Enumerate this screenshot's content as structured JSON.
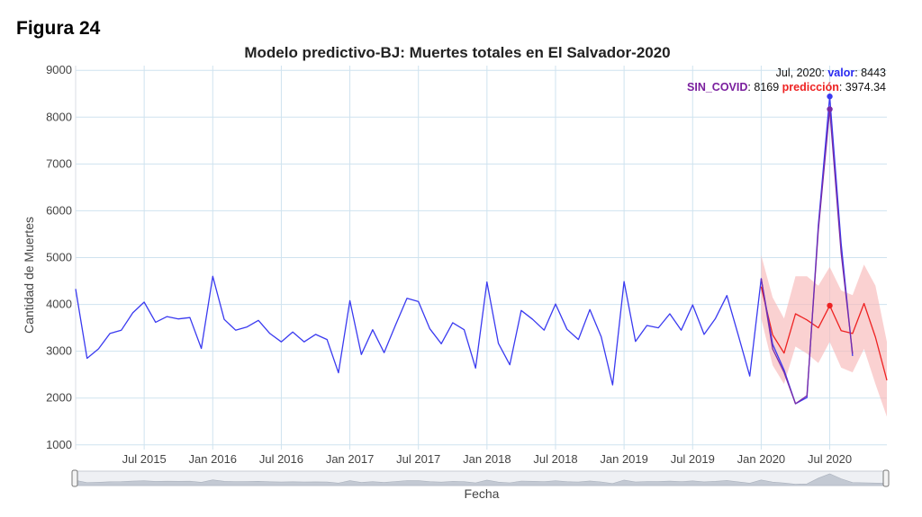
{
  "figure_label": "Figura 24",
  "chart_data": {
    "type": "line",
    "title": "Modelo predictivo-BJ: Muertes totales en El Salvador-2020",
    "xlabel": "Fecha",
    "ylabel": "Cantidad de Muertes",
    "ylim": [
      900,
      9100
    ],
    "yticks": [
      1000,
      2000,
      3000,
      4000,
      5000,
      6000,
      7000,
      8000,
      9000
    ],
    "xlim": [
      "2015-01",
      "2020-12"
    ],
    "xticks": [
      {
        "date": "2015-07",
        "label": "Jul 2015"
      },
      {
        "date": "2016-01",
        "label": "Jan 2016"
      },
      {
        "date": "2016-07",
        "label": "Jul 2016"
      },
      {
        "date": "2017-01",
        "label": "Jan 2017"
      },
      {
        "date": "2017-07",
        "label": "Jul 2017"
      },
      {
        "date": "2018-01",
        "label": "Jan 2018"
      },
      {
        "date": "2018-07",
        "label": "Jul 2018"
      },
      {
        "date": "2019-01",
        "label": "Jan 2019"
      },
      {
        "date": "2019-07",
        "label": "Jul 2019"
      },
      {
        "date": "2020-01",
        "label": "Jan 2020"
      },
      {
        "date": "2020-07",
        "label": "Jul 2020"
      }
    ],
    "grid": true,
    "legend": "none",
    "colors": {
      "valor": "#3a3af0",
      "sin_covid": "#7a2aa6",
      "prediccion": "#ee2222",
      "band": "#f7b8b8",
      "grid": "#cfe3ef"
    },
    "series": [
      {
        "key": "valor",
        "x": [
          "2015-01",
          "2015-02",
          "2015-03",
          "2015-04",
          "2015-05",
          "2015-06",
          "2015-07",
          "2015-08",
          "2015-09",
          "2015-10",
          "2015-11",
          "2015-12",
          "2016-01",
          "2016-02",
          "2016-03",
          "2016-04",
          "2016-05",
          "2016-06",
          "2016-07",
          "2016-08",
          "2016-09",
          "2016-10",
          "2016-11",
          "2016-12",
          "2017-01",
          "2017-02",
          "2017-03",
          "2017-04",
          "2017-05",
          "2017-06",
          "2017-07",
          "2017-08",
          "2017-09",
          "2017-10",
          "2017-11",
          "2017-12",
          "2018-01",
          "2018-02",
          "2018-03",
          "2018-04",
          "2018-05",
          "2018-06",
          "2018-07",
          "2018-08",
          "2018-09",
          "2018-10",
          "2018-11",
          "2018-12",
          "2019-01",
          "2019-02",
          "2019-03",
          "2019-04",
          "2019-05",
          "2019-06",
          "2019-07",
          "2019-08",
          "2019-09",
          "2019-10",
          "2019-11",
          "2019-12",
          "2020-01",
          "2020-02",
          "2020-03",
          "2020-04",
          "2020-05",
          "2020-06",
          "2020-07",
          "2020-08",
          "2020-09",
          "2020-10"
        ],
        "y": [
          4330,
          2850,
          3050,
          3380,
          3450,
          3820,
          4050,
          3620,
          3740,
          3690,
          3720,
          3060,
          4600,
          3680,
          3450,
          3520,
          3660,
          3380,
          3200,
          3410,
          3200,
          3360,
          3250,
          2540,
          4080,
          2930,
          3460,
          2970,
          3560,
          4130,
          4060,
          3480,
          3160,
          3610,
          3460,
          2640,
          4480,
          3170,
          2710,
          3870,
          3680,
          3450,
          4010,
          3470,
          3250,
          3890,
          3310,
          2280,
          4490,
          3210,
          3550,
          3500,
          3800,
          3450,
          3990,
          3360,
          3700,
          4190,
          3340,
          2470,
          4550,
          3150,
          2600,
          1880,
          2010,
          5700,
          8443,
          5300,
          2900,
          null
        ]
      },
      {
        "key": "sin_covid",
        "x": [
          "2020-01",
          "2020-02",
          "2020-03",
          "2020-04",
          "2020-05",
          "2020-06",
          "2020-07",
          "2020-08",
          "2020-09"
        ],
        "y": [
          4550,
          3050,
          2550,
          1880,
          2050,
          5600,
          8169,
          5100,
          2950
        ]
      },
      {
        "key": "prediccion",
        "x": [
          "2020-01",
          "2020-02",
          "2020-03",
          "2020-04",
          "2020-05",
          "2020-06",
          "2020-07",
          "2020-08",
          "2020-09",
          "2020-10",
          "2020-11",
          "2020-12"
        ],
        "y": [
          4380,
          3350,
          2960,
          3800,
          3670,
          3500,
          3974.34,
          3440,
          3380,
          4020,
          3300,
          2380
        ],
        "upper": [
          5050,
          4150,
          3700,
          4600,
          4600,
          4400,
          4800,
          4300,
          4200,
          4850,
          4400,
          3200
        ],
        "lower": [
          3700,
          2700,
          2300,
          3100,
          2950,
          2750,
          3200,
          2650,
          2550,
          3050,
          2300,
          1600
        ]
      }
    ],
    "hover": {
      "line1_date": "Jul, 2020: ",
      "valor_label": "valor",
      "valor_value": ": 8443",
      "sin_covid_label": "SIN_COVID",
      "sin_covid_value": ": 8169 ",
      "prediccion_label": "predicción",
      "prediccion_value": ": 3974.34"
    }
  }
}
